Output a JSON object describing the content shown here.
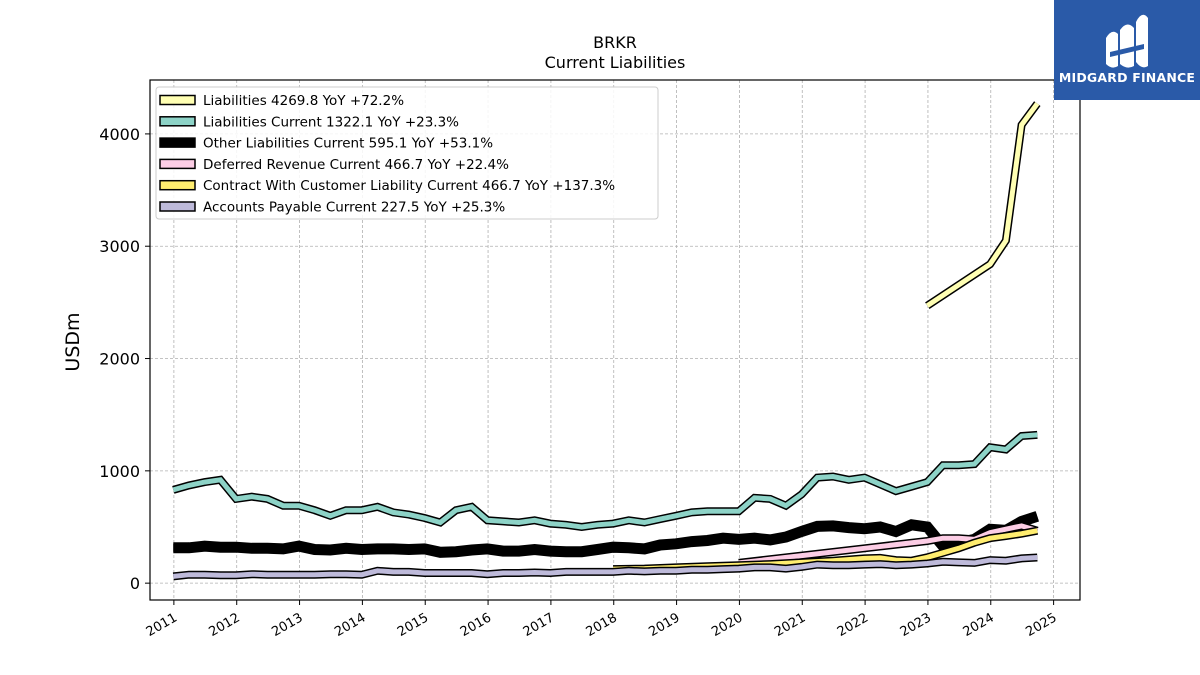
{
  "logo": {
    "text": "MIDGARD FINANCE",
    "icon": "midgard-logo-icon",
    "background": "#2a5aa8"
  },
  "chart_data": {
    "type": "line",
    "title": "BRKR",
    "subtitle": "Current  Liabilities",
    "xlabel": "",
    "ylabel": "USDm",
    "xlim": [
      2010.62,
      2025.42
    ],
    "ylim": [
      -150,
      4480
    ],
    "x_ticks": [
      "2011",
      "2012",
      "2013",
      "2014",
      "2015",
      "2016",
      "2017",
      "2018",
      "2019",
      "2020",
      "2021",
      "2022",
      "2023",
      "2024",
      "2025"
    ],
    "y_ticks": [
      0,
      1000,
      2000,
      3000,
      4000
    ],
    "grid": true,
    "legend_position": "top-left",
    "series": [
      {
        "name": "Liabilities  4269.8 YoY +72.2%",
        "color": "#ffffb3",
        "width": 5,
        "x": [
          2022.99,
          2023.99,
          2024.24,
          2024.49,
          2024.74
        ],
        "y": [
          2470,
          2840,
          3050,
          4080,
          4270
        ]
      },
      {
        "name": "Liabilities Current  1322.1 YoY +23.3%",
        "color": "#8dd3c7",
        "width": 5,
        "x": [
          2010.99,
          2011.24,
          2011.49,
          2011.74,
          2011.99,
          2012.24,
          2012.49,
          2012.74,
          2012.99,
          2013.24,
          2013.49,
          2013.74,
          2013.99,
          2014.24,
          2014.49,
          2014.74,
          2014.99,
          2015.24,
          2015.49,
          2015.74,
          2015.99,
          2016.24,
          2016.49,
          2016.74,
          2016.99,
          2017.24,
          2017.49,
          2017.74,
          2017.99,
          2018.24,
          2018.49,
          2018.74,
          2018.99,
          2019.24,
          2019.49,
          2019.74,
          2019.99,
          2020.24,
          2020.49,
          2020.74,
          2020.99,
          2021.24,
          2021.49,
          2021.74,
          2021.99,
          2022.24,
          2022.49,
          2022.74,
          2022.99,
          2023.24,
          2023.49,
          2023.74,
          2023.99,
          2024.24,
          2024.49,
          2024.74
        ],
        "y": [
          830,
          870,
          900,
          920,
          750,
          770,
          750,
          690,
          690,
          650,
          600,
          650,
          650,
          680,
          630,
          610,
          580,
          540,
          650,
          680,
          560,
          550,
          540,
          560,
          530,
          520,
          500,
          520,
          530,
          560,
          540,
          570,
          600,
          630,
          640,
          640,
          640,
          760,
          750,
          690,
          790,
          940,
          950,
          920,
          940,
          880,
          820,
          860,
          900,
          1050,
          1050,
          1060,
          1210,
          1190,
          1310,
          1320
        ]
      },
      {
        "name": "Other Liabilities Current  595.1 YoY +53.1%",
        "color": "#000000",
        "width": 8,
        "x": [
          2010.99,
          2011.24,
          2011.49,
          2011.74,
          2011.99,
          2012.24,
          2012.49,
          2012.74,
          2012.99,
          2013.24,
          2013.49,
          2013.74,
          2013.99,
          2014.24,
          2014.49,
          2014.74,
          2014.99,
          2015.24,
          2015.49,
          2015.74,
          2015.99,
          2016.24,
          2016.49,
          2016.74,
          2016.99,
          2017.24,
          2017.49,
          2017.74,
          2017.99,
          2018.24,
          2018.49,
          2018.74,
          2018.99,
          2019.24,
          2019.49,
          2019.74,
          2019.99,
          2020.24,
          2020.49,
          2020.74,
          2020.99,
          2021.24,
          2021.49,
          2021.74,
          2021.99,
          2022.24,
          2022.49,
          2022.74,
          2022.99,
          2023.24,
          2023.49,
          2023.74,
          2023.99,
          2024.24,
          2024.49,
          2024.74
        ],
        "y": [
          315,
          315,
          330,
          320,
          320,
          310,
          310,
          305,
          330,
          300,
          295,
          310,
          300,
          305,
          305,
          300,
          305,
          275,
          280,
          295,
          305,
          285,
          285,
          300,
          285,
          280,
          280,
          300,
          320,
          315,
          305,
          340,
          350,
          370,
          380,
          400,
          390,
          400,
          385,
          410,
          460,
          505,
          510,
          495,
          485,
          500,
          460,
          520,
          500,
          330,
          360,
          390,
          480,
          470,
          550,
          595
        ]
      },
      {
        "name": "Deferred Revenue Current  466.7 YoY +22.4%",
        "color": "#fccde5",
        "width": 5,
        "x": [
          2019.99,
          2020.99,
          2021.99,
          2022.99,
          2023.24,
          2023.49,
          2023.74,
          2023.99,
          2024.24,
          2024.49,
          2024.74
        ],
        "y": [
          180,
          245,
          310,
          375,
          400,
          400,
          390,
          450,
          480,
          510,
          467
        ]
      },
      {
        "name": "Contract With Customer Liability Current  466.7 YoY +137.3%",
        "color": "#ffed6f",
        "width": 5,
        "x": [
          2017.99,
          2018.49,
          2018.99,
          2019.49,
          2019.99,
          2020.49,
          2020.99,
          2021.49,
          2021.99,
          2022.24,
          2022.49,
          2022.74,
          2022.99,
          2023.24,
          2023.49,
          2023.74,
          2023.99,
          2024.24,
          2024.49,
          2024.74
        ],
        "y": [
          125,
          130,
          140,
          150,
          160,
          170,
          185,
          200,
          220,
          225,
          205,
          200,
          230,
          270,
          310,
          360,
          400,
          420,
          440,
          467
        ]
      },
      {
        "name": "Accounts Payable Current  227.5 YoY +25.3%",
        "color": "#bebada",
        "width": 5,
        "x": [
          2010.99,
          2011.24,
          2011.49,
          2011.74,
          2011.99,
          2012.24,
          2012.49,
          2012.74,
          2012.99,
          2013.24,
          2013.49,
          2013.74,
          2013.99,
          2014.24,
          2014.49,
          2014.74,
          2014.99,
          2015.24,
          2015.49,
          2015.74,
          2015.99,
          2016.24,
          2016.49,
          2016.74,
          2016.99,
          2017.24,
          2017.49,
          2017.74,
          2017.99,
          2018.24,
          2018.49,
          2018.74,
          2018.99,
          2019.24,
          2019.49,
          2019.74,
          2019.99,
          2020.24,
          2020.49,
          2020.74,
          2020.99,
          2021.24,
          2021.49,
          2021.74,
          2021.99,
          2022.24,
          2022.49,
          2022.74,
          2022.99,
          2023.24,
          2023.49,
          2023.74,
          2023.99,
          2024.24,
          2024.49,
          2024.74
        ],
        "y": [
          60,
          75,
          75,
          70,
          70,
          80,
          75,
          75,
          75,
          75,
          80,
          80,
          75,
          110,
          100,
          100,
          90,
          90,
          90,
          90,
          80,
          90,
          90,
          95,
          90,
          100,
          100,
          100,
          100,
          110,
          105,
          110,
          110,
          120,
          120,
          125,
          130,
          140,
          140,
          130,
          145,
          165,
          160,
          160,
          165,
          170,
          160,
          165,
          175,
          190,
          185,
          180,
          205,
          200,
          220,
          228
        ]
      }
    ]
  }
}
